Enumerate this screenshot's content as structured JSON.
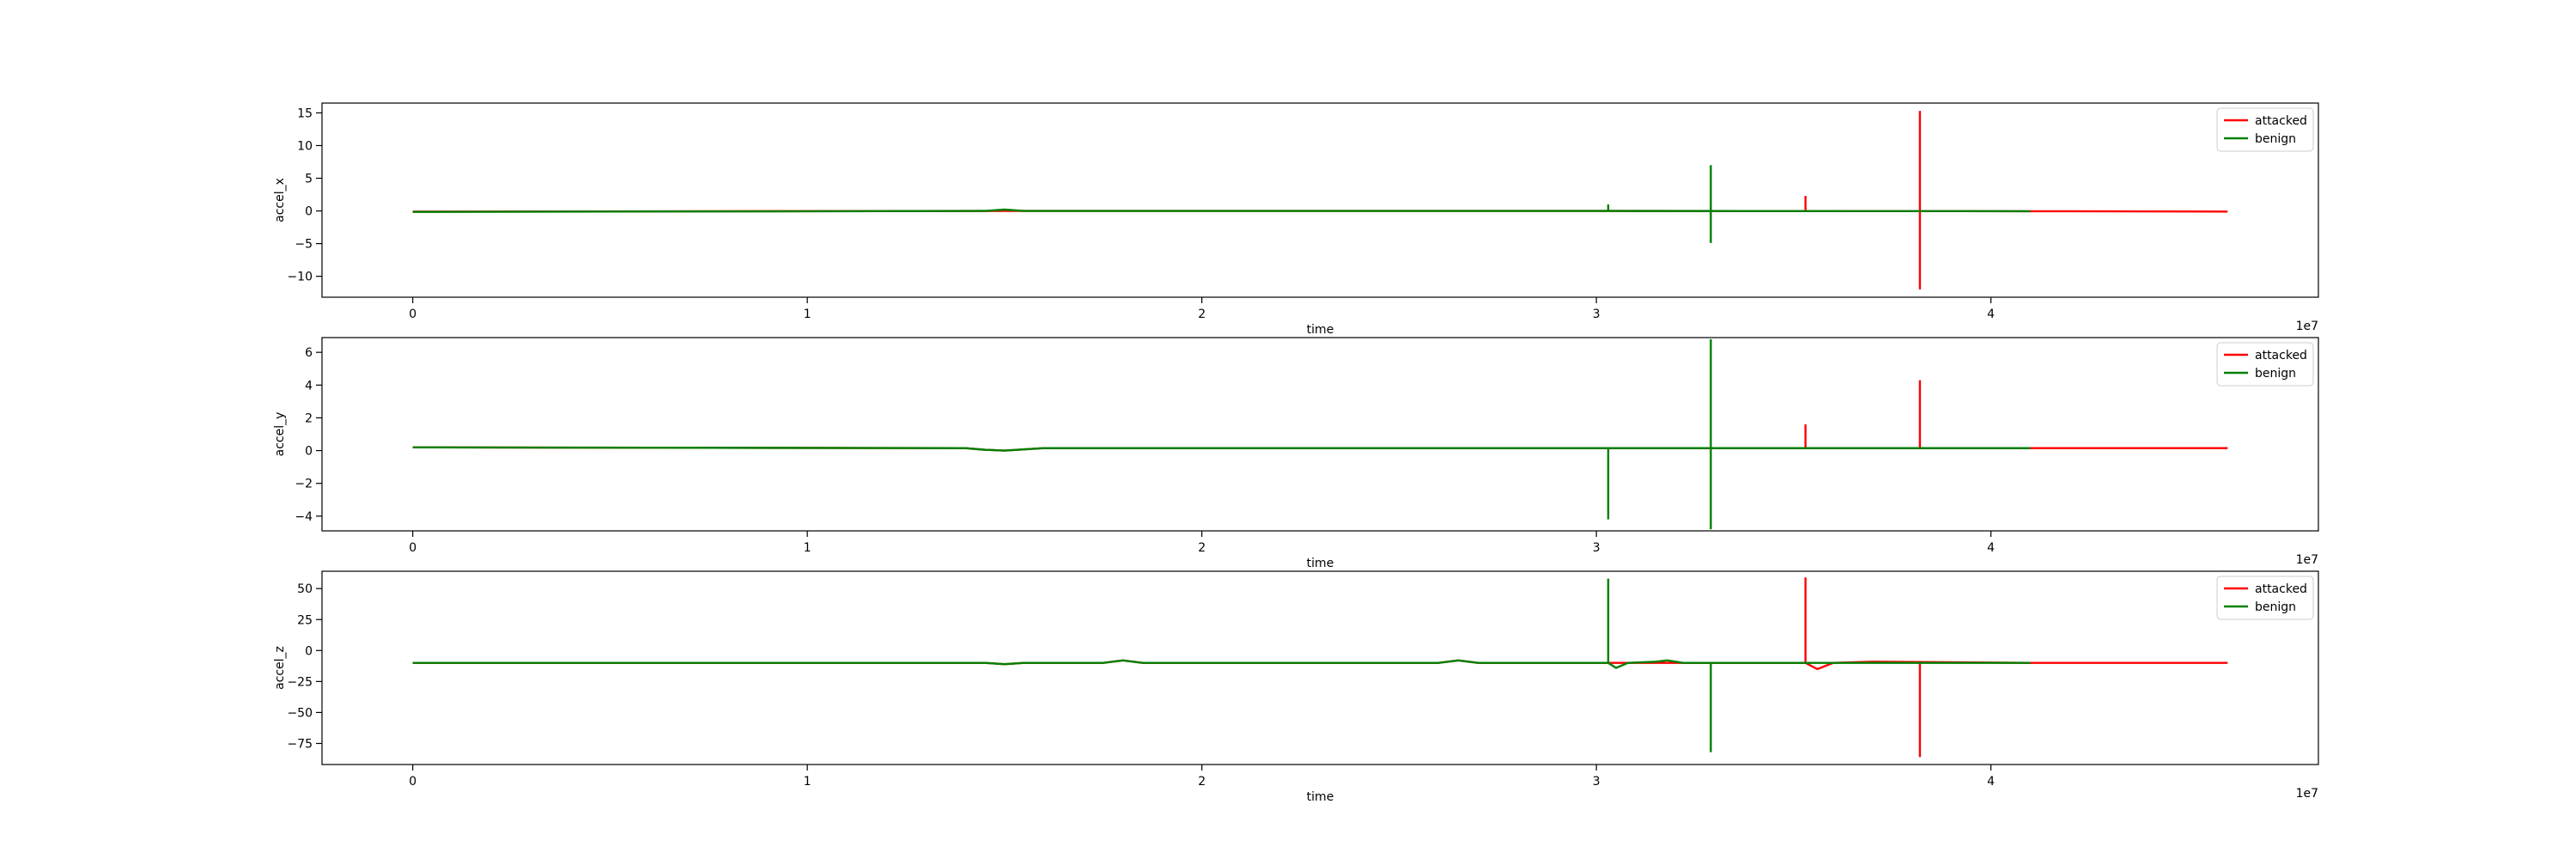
{
  "chart_data": [
    {
      "type": "line",
      "ylabel": "accel_x",
      "xlabel": "time",
      "x_offset_label": "1e7",
      "xlim": [
        -0.23,
        4.83
      ],
      "ylim": [
        -13.2,
        16.5
      ],
      "x_ticks": [
        0,
        1,
        2,
        3,
        4
      ],
      "x_tick_labels": [
        "0",
        "1",
        "2",
        "3",
        "4"
      ],
      "y_ticks": [
        -10,
        -5,
        0,
        5,
        10,
        15
      ],
      "y_tick_labels": [
        "−10",
        "−5",
        "0",
        "5",
        "10",
        "15"
      ],
      "legend": {
        "position": "top-right",
        "entries": [
          {
            "label": "attacked",
            "color": "#ff0000"
          },
          {
            "label": "benign",
            "color": "#008000"
          }
        ]
      },
      "series": [
        {
          "name": "attacked",
          "color": "#ff0000",
          "baseline": {
            "x": [
              0,
              1.5,
              3.0,
              4.1,
              4.6
            ],
            "y": [
              -0.1,
              0.0,
              0.0,
              -0.05,
              -0.1
            ]
          },
          "spikes": [
            {
              "x": 3.53,
              "min": 0,
              "max": 2.3
            },
            {
              "x": 3.82,
              "min": -12.0,
              "max": 15.3
            }
          ]
        },
        {
          "name": "benign",
          "color": "#008000",
          "baseline": {
            "x": [
              0,
              1.45,
              1.5,
              1.55,
              3.0,
              4.1
            ],
            "y": [
              -0.15,
              0.0,
              0.2,
              0.0,
              0.0,
              -0.05
            ]
          },
          "spikes": [
            {
              "x": 3.03,
              "min": 0,
              "max": 1.0
            },
            {
              "x": 3.29,
              "min": -4.9,
              "max": 7.0
            }
          ]
        }
      ]
    },
    {
      "type": "line",
      "ylabel": "accel_y",
      "xlabel": "time",
      "x_offset_label": "1e7",
      "xlim": [
        -0.23,
        4.83
      ],
      "ylim": [
        -4.9,
        6.9
      ],
      "x_ticks": [
        0,
        1,
        2,
        3,
        4
      ],
      "x_tick_labels": [
        "0",
        "1",
        "2",
        "3",
        "4"
      ],
      "y_ticks": [
        -4,
        -2,
        0,
        2,
        4,
        6
      ],
      "y_tick_labels": [
        "−4",
        "−2",
        "0",
        "2",
        "4",
        "6"
      ],
      "legend": {
        "position": "top-right",
        "entries": [
          {
            "label": "attacked",
            "color": "#ff0000"
          },
          {
            "label": "benign",
            "color": "#008000"
          }
        ]
      },
      "series": [
        {
          "name": "attacked",
          "color": "#ff0000",
          "baseline": {
            "x": [
              0,
              1.4,
              1.45,
              1.5,
              1.6,
              3.0,
              4.1,
              4.6
            ],
            "y": [
              0.2,
              0.15,
              0.05,
              0.0,
              0.15,
              0.15,
              0.15,
              0.15
            ]
          },
          "spikes": [
            {
              "x": 3.53,
              "min": 0.1,
              "max": 1.6
            },
            {
              "x": 3.82,
              "min": 0.1,
              "max": 4.3
            }
          ]
        },
        {
          "name": "benign",
          "color": "#008000",
          "baseline": {
            "x": [
              0,
              1.4,
              1.45,
              1.5,
              1.6,
              3.0,
              4.1
            ],
            "y": [
              0.2,
              0.15,
              0.05,
              0.0,
              0.15,
              0.15,
              0.15
            ]
          },
          "spikes": [
            {
              "x": 3.03,
              "min": -4.2,
              "max": 0.1
            },
            {
              "x": 3.29,
              "min": -4.8,
              "max": 6.8
            }
          ]
        }
      ]
    },
    {
      "type": "line",
      "ylabel": "accel_z",
      "xlabel": "time",
      "x_offset_label": "1e7",
      "xlim": [
        -0.23,
        4.83
      ],
      "ylim": [
        -92,
        64
      ],
      "x_ticks": [
        0,
        1,
        2,
        3,
        4
      ],
      "x_tick_labels": [
        "0",
        "1",
        "2",
        "3",
        "4"
      ],
      "y_ticks": [
        -75,
        -50,
        -25,
        0,
        25,
        50
      ],
      "y_tick_labels": [
        "−75",
        "−50",
        "−25",
        "0",
        "25",
        "50"
      ],
      "legend": {
        "position": "top-right",
        "entries": [
          {
            "label": "attacked",
            "color": "#ff0000"
          },
          {
            "label": "benign",
            "color": "#008000"
          }
        ]
      },
      "series": [
        {
          "name": "attacked",
          "color": "#ff0000",
          "baseline": {
            "x": [
              0,
              1.45,
              1.5,
              1.55,
              1.75,
              1.8,
              1.85,
              2.6,
              2.65,
              2.7,
              3.0,
              3.53,
              3.56,
              3.6,
              3.7,
              4.1,
              4.6
            ],
            "y": [
              -10,
              -10,
              -11,
              -10,
              -10,
              -8,
              -10,
              -10,
              -8,
              -10,
              -10,
              -10,
              -15,
              -10,
              -9,
              -10,
              -10
            ]
          },
          "spikes": [
            {
              "x": 3.53,
              "min": -10,
              "max": 59
            },
            {
              "x": 3.82,
              "min": -86,
              "max": -10
            }
          ]
        },
        {
          "name": "benign",
          "color": "#008000",
          "baseline": {
            "x": [
              0,
              1.45,
              1.5,
              1.55,
              1.75,
              1.8,
              1.85,
              2.6,
              2.65,
              2.7,
              3.03,
              3.05,
              3.08,
              3.15,
              3.18,
              3.22,
              4.1
            ],
            "y": [
              -10,
              -10,
              -11,
              -10,
              -10,
              -8,
              -10,
              -10,
              -8,
              -10,
              -10,
              -14,
              -10,
              -9,
              -8,
              -10,
              -10
            ]
          },
          "spikes": [
            {
              "x": 3.03,
              "min": -10,
              "max": 58
            },
            {
              "x": 3.29,
              "min": -82,
              "max": -10
            }
          ]
        }
      ]
    }
  ]
}
